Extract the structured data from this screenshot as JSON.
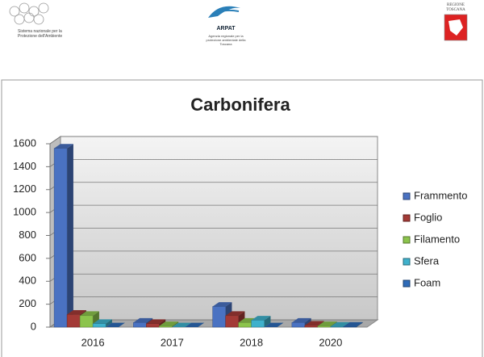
{
  "header": {
    "left_logo": "Sistema nazionale per la Protezione dell'Ambiente",
    "center_logo": "ARPAT",
    "center_caption": "Agenzia regionale per la protezione ambientale della Toscana",
    "right_logo": "REGIONE TOSCANA"
  },
  "chart_data": {
    "type": "bar3d",
    "title": "Carbonifera",
    "categories": [
      "2016",
      "2017",
      "2018",
      "2020"
    ],
    "series": [
      {
        "name": "Frammento",
        "color": "#4a72c2",
        "values": [
          1560,
          40,
          180,
          40
        ]
      },
      {
        "name": "Foglio",
        "color": "#a33a36",
        "values": [
          110,
          30,
          100,
          15
        ]
      },
      {
        "name": "Filamento",
        "color": "#8cc44c",
        "values": [
          100,
          10,
          40,
          10
        ]
      },
      {
        "name": "Sfera",
        "color": "#3fb1cc",
        "values": [
          30,
          0,
          60,
          5
        ]
      },
      {
        "name": "Foam",
        "color": "#2e6bb8",
        "values": [
          0,
          0,
          0,
          5
        ]
      }
    ],
    "ylim": [
      0,
      1600
    ],
    "yticks": [
      0,
      200,
      400,
      600,
      800,
      1000,
      1200,
      1400,
      1600
    ],
    "grid": true,
    "legend": "right"
  }
}
